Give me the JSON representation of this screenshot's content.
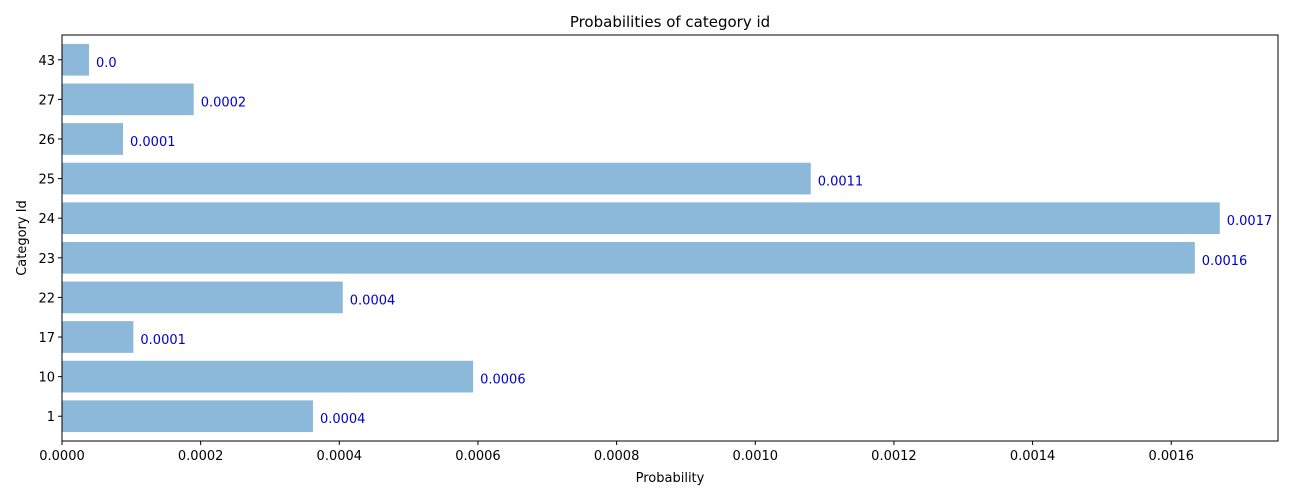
{
  "chart_data": {
    "type": "bar",
    "orientation": "horizontal",
    "title": "Probabilities of category id",
    "xlabel": "Probability",
    "ylabel": "Category Id",
    "categories": [
      "1",
      "10",
      "17",
      "22",
      "23",
      "24",
      "25",
      "26",
      "27",
      "43"
    ],
    "values": [
      0.000362,
      0.000593,
      0.000103,
      0.000405,
      0.001634,
      0.00167,
      0.00108,
      8.8e-05,
      0.00019,
      3.9e-05
    ],
    "value_labels": [
      "0.0004",
      "0.0006",
      "0.0001",
      "0.0004",
      "0.0016",
      "0.0017",
      "0.0011",
      "0.0001",
      "0.0002",
      "0.0"
    ],
    "xlim": [
      0,
      0.001754
    ],
    "xticks": [
      0,
      0.0002,
      0.0004,
      0.0006,
      0.0008,
      0.001,
      0.0012,
      0.0014,
      0.0016
    ],
    "xtick_labels": [
      "0.0000",
      "0.0002",
      "0.0004",
      "0.0006",
      "0.0008",
      "0.0010",
      "0.0012",
      "0.0014",
      "0.0016"
    ],
    "grid": false,
    "bar_color": "#8cb8d9",
    "label_color": "#0000cc"
  }
}
